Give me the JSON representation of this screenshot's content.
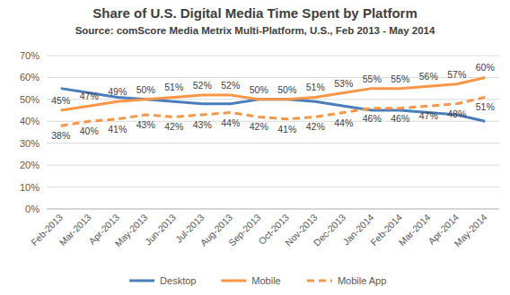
{
  "chart_data": {
    "type": "line",
    "title": "Share of U.S. Digital Media Time Spent by Platform",
    "subtitle": "Source: comScore Media Metrix Multi-Platform, U.S., Feb 2013 - May 2014",
    "categories": [
      "Feb-2013",
      "Mar-2013",
      "Apr-2013",
      "May-2013",
      "Jun-2013",
      "Jul-2013",
      "Aug-2013",
      "Sep-2013",
      "Oct-2013",
      "Nov-2013",
      "Dec-2013",
      "Jan-2014",
      "Feb-2014",
      "Mar-2014",
      "Apr-2014",
      "May-2014"
    ],
    "series": [
      {
        "name": "Desktop",
        "color": "#4a7ebb",
        "line_style": "solid",
        "values": [
          55,
          53,
          51,
          50,
          49,
          48,
          48,
          50,
          50,
          49,
          47,
          45,
          45,
          44,
          43,
          40
        ]
      },
      {
        "name": "Mobile",
        "color": "#f79646",
        "line_style": "solid",
        "data_labels": true,
        "values": [
          45,
          47,
          49,
          50,
          51,
          52,
          52,
          50,
          50,
          51,
          53,
          55,
          55,
          56,
          57,
          60
        ],
        "value_labels": [
          "45%",
          "47%",
          "49%",
          "50%",
          "51%",
          "52%",
          "52%",
          "50%",
          "50%",
          "51%",
          "53%",
          "55%",
          "55%",
          "56%",
          "57%",
          "60%"
        ]
      },
      {
        "name": "Mobile App",
        "color": "#f79646",
        "line_style": "dashed",
        "data_labels": true,
        "values": [
          38,
          40,
          41,
          43,
          42,
          43,
          44,
          42,
          41,
          42,
          44,
          46,
          46,
          47,
          48,
          51
        ],
        "value_labels": [
          "38%",
          "40%",
          "41%",
          "43%",
          "42%",
          "43%",
          "44%",
          "42%",
          "41%",
          "42%",
          "44%",
          "46%",
          "46%",
          "47%",
          "48%",
          "51%"
        ]
      }
    ],
    "ylim": [
      0,
      70
    ],
    "yticks": [
      {
        "value": 0,
        "label": "0%"
      },
      {
        "value": 10,
        "label": "10%"
      },
      {
        "value": 20,
        "label": "20%"
      },
      {
        "value": 30,
        "label": "30%"
      },
      {
        "value": 40,
        "label": "40%"
      },
      {
        "value": 50,
        "label": "50%"
      },
      {
        "value": 60,
        "label": "60%"
      },
      {
        "value": 70,
        "label": "70%"
      }
    ],
    "grid": true,
    "legend": "bottom"
  }
}
